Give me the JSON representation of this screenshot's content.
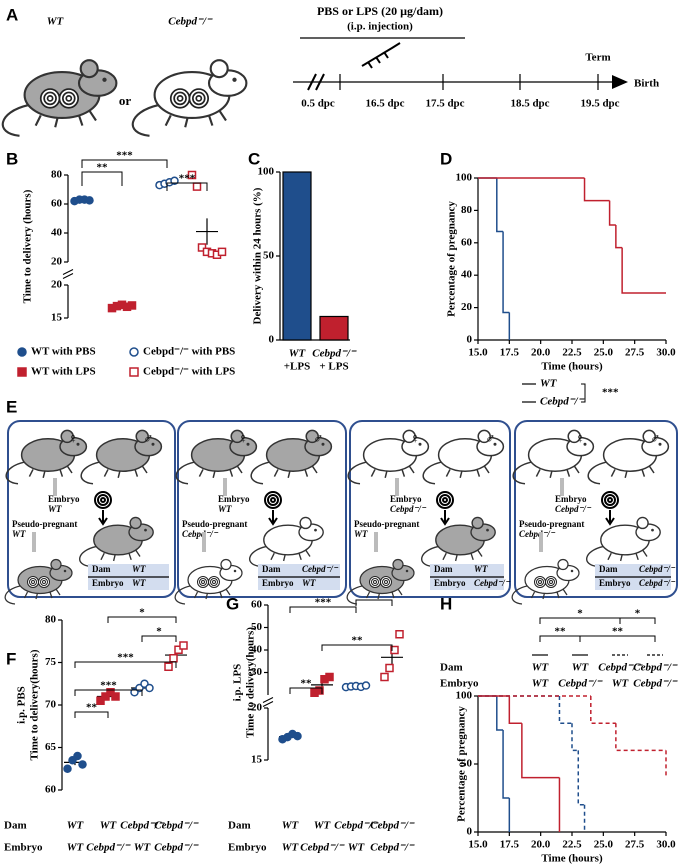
{
  "panel_a": {
    "label": "A",
    "strains": [
      "WT",
      "Cebpd⁻/⁻"
    ],
    "or": "or",
    "treatment": "PBS or LPS (20 µg/dam)",
    "route": "(i.p. injection)",
    "term": "Term",
    "birth": "Birth",
    "timepoints": [
      "0.5 dpc",
      "16.5 dpc",
      "17.5 dpc",
      "18.5 dpc",
      "19.5 dpc"
    ]
  },
  "chart_data": [
    {
      "label": "B",
      "type": "dot",
      "ylabel": "Time to delivery (hours)",
      "segments": [
        {
          "ylim": [
            15,
            20
          ],
          "yticks": [
            15,
            20
          ]
        },
        {
          "ylim": [
            20,
            80
          ],
          "yticks": [
            20,
            40,
            60,
            80
          ]
        }
      ],
      "series": [
        {
          "name": "WT with PBS",
          "color": "#1f4e8c",
          "marker": "circle",
          "filled": true,
          "values": [
            62,
            63,
            63,
            62.5
          ]
        },
        {
          "name": "WT with LPS",
          "color": "#c0202e",
          "marker": "square",
          "filled": true,
          "values": [
            16.5,
            16.8,
            17,
            16.7,
            16.9
          ]
        },
        {
          "name": "Cebpd⁻/⁻ with PBS",
          "color": "#1f4e8c",
          "marker": "circle",
          "filled": false,
          "values": [
            73,
            74,
            75,
            76
          ]
        },
        {
          "name": "Cebpd⁻/⁻ with LPS",
          "color": "#c0202e",
          "marker": "square",
          "filled": false,
          "values": [
            80,
            72,
            30,
            27,
            26,
            25,
            27
          ]
        }
      ],
      "significance": [
        "***",
        "**",
        "***"
      ]
    },
    {
      "label": "C",
      "type": "bar",
      "ylabel": "Delivery within 24 hours (%)",
      "categories": [
        "WT",
        "Cebpd⁻/⁻"
      ],
      "category_sublabels": [
        "+LPS",
        "+ LPS"
      ],
      "values": [
        100,
        14
      ],
      "colors": [
        "#1f4e8c",
        "#c0202e"
      ],
      "ylim": [
        0,
        100
      ],
      "yticks": [
        0,
        50,
        100
      ]
    },
    {
      "label": "D",
      "type": "step",
      "xlabel": "Time (hours)",
      "ylabel": "Percentage of pregnancy",
      "xlim": [
        15,
        30
      ],
      "xticks": [
        {
          "value": 15,
          "label": "15.0"
        },
        17.5,
        {
          "value": 20,
          "label": "20.0"
        },
        22.5,
        {
          "value": 25,
          "label": "25.0"
        },
        27.5,
        {
          "value": 30,
          "label": "30.0"
        }
      ],
      "ylim": [
        0,
        100
      ],
      "yticks": [
        0,
        20,
        40,
        60,
        80,
        100
      ],
      "series": [
        {
          "name": "WT",
          "color": "#1f4e8c",
          "dash": false,
          "x": [
            15,
            16.5,
            17,
            17.5
          ],
          "values": [
            100,
            67,
            17,
            0
          ]
        },
        {
          "name": "Cebpd⁻/⁻",
          "color": "#c0202e",
          "dash": false,
          "x": [
            15,
            23.5,
            25.5,
            26,
            26.5,
            30
          ],
          "values": [
            100,
            86,
            71,
            57,
            29,
            29
          ]
        }
      ],
      "significance": [
        "***"
      ]
    },
    {
      "label": "F",
      "type": "dot",
      "ylabel": [
        "i.p. PBS",
        "Time to delivery(hours)"
      ],
      "ylim": [
        60,
        80
      ],
      "yticks": [
        60,
        65,
        70,
        75,
        80
      ],
      "row_labels": [
        "Dam",
        "Embryo"
      ],
      "dam": [
        "WT",
        "WT",
        "Cebpd⁻/⁻",
        "Cebpd⁻/⁻"
      ],
      "embryo": [
        "WT",
        "Cebpd⁻/⁻",
        "WT",
        "Cebpd⁻/⁻"
      ],
      "series": [
        {
          "color": "#1f4e8c",
          "marker": "circle",
          "filled": true,
          "values": [
            62.5,
            63.5,
            64,
            63
          ]
        },
        {
          "color": "#c0202e",
          "marker": "square",
          "filled": true,
          "values": [
            70.5,
            71,
            71.5,
            71
          ]
        },
        {
          "color": "#1f4e8c",
          "marker": "circle",
          "filled": false,
          "values": [
            71.5,
            72,
            72.5,
            72
          ]
        },
        {
          "color": "#c0202e",
          "marker": "square",
          "filled": false,
          "values": [
            74.5,
            75.5,
            76.5,
            77
          ]
        }
      ],
      "significance": [
        "*",
        "*",
        "***",
        "***",
        "**"
      ]
    },
    {
      "label": "G",
      "type": "dot",
      "ylabel": [
        "i.p. LPS",
        "Time to delivery(hours)"
      ],
      "segments": [
        {
          "ylim": [
            15,
            20
          ],
          "yticks": [
            15,
            20
          ]
        },
        {
          "ylim": [
            20,
            60
          ],
          "yticks": [
            30,
            40,
            50,
            60
          ]
        }
      ],
      "row_labels": [
        "Dam",
        "Embryo"
      ],
      "dam": [
        "WT",
        "WT",
        "Cebpd⁻/⁻",
        "Cebpd⁻/⁻"
      ],
      "embryo": [
        "WT",
        "Cebpd⁻/⁻",
        "WT",
        "Cebpd⁻/⁻"
      ],
      "series": [
        {
          "color": "#1f4e8c",
          "marker": "circle",
          "filled": true,
          "values": [
            17,
            17.2,
            17.5,
            17.3
          ]
        },
        {
          "color": "#c0202e",
          "marker": "square",
          "filled": true,
          "values": [
            21,
            22,
            27,
            28
          ]
        },
        {
          "color": "#1f4e8c",
          "marker": "circle",
          "filled": false,
          "values": [
            23.5,
            23.8,
            24,
            23.6,
            24.2
          ]
        },
        {
          "color": "#c0202e",
          "marker": "square",
          "filled": false,
          "values": [
            28,
            32,
            40,
            47
          ]
        }
      ],
      "significance": [
        "***",
        "**",
        "**",
        "**"
      ]
    },
    {
      "label": "H",
      "type": "step",
      "xlabel": "Time (hours)",
      "ylabel": "Percentage of pregnancy",
      "xlim": [
        15,
        30
      ],
      "xticks": [
        {
          "value": 15,
          "label": "15.0"
        },
        17.5,
        {
          "value": 20,
          "label": "20.0"
        },
        22.5,
        {
          "value": 25,
          "label": "25.0"
        },
        27.5,
        {
          "value": 30,
          "label": "30.0"
        }
      ],
      "ylim": [
        0,
        100
      ],
      "yticks": [
        0,
        50,
        100
      ],
      "row_labels": [
        "Dam",
        "Embryo"
      ],
      "series": [
        {
          "dam": "WT",
          "embryo": "WT",
          "color": "#1f4e8c",
          "dash": false,
          "x": [
            15,
            16.5,
            17,
            17.5
          ],
          "values": [
            100,
            75,
            25,
            0
          ]
        },
        {
          "dam": "WT",
          "embryo": "Cebpd⁻/⁻",
          "color": "#c0202e",
          "dash": false,
          "x": [
            15,
            17.5,
            18.5,
            21.5
          ],
          "values": [
            100,
            80,
            40,
            0
          ]
        },
        {
          "dam": "Cebpd⁻/⁻",
          "embryo": "WT",
          "color": "#1f4e8c",
          "dash": true,
          "x": [
            15,
            21.5,
            22.5,
            23,
            23.5
          ],
          "values": [
            100,
            80,
            60,
            20,
            0
          ]
        },
        {
          "dam": "Cebpd⁻/⁻",
          "embryo": "Cebpd⁻/⁻",
          "color": "#c0202e",
          "dash": true,
          "x": [
            15,
            24,
            26,
            30
          ],
          "values": [
            100,
            80,
            60,
            40
          ]
        }
      ],
      "significance": [
        "*",
        "*",
        "**",
        "**"
      ]
    }
  ],
  "panel_e": {
    "label": "E",
    "symbols": [
      "♀",
      "♂"
    ],
    "embryo_label": "Embryo",
    "pseudo_label": "Pseudo-pregnant",
    "table_labels": [
      "Dam",
      "Embryo"
    ],
    "panels": [
      {
        "embryo": "WT",
        "pseudo": "WT",
        "dam": "WT",
        "table_embryo": "WT",
        "parent_color": "#a6a6a6",
        "pseudo_color": "#a6a6a6"
      },
      {
        "embryo": "WT",
        "pseudo": "Cebpd⁻/⁻",
        "dam": "Cebpd⁻/⁻",
        "table_embryo": "WT",
        "parent_color": "#a6a6a6",
        "pseudo_color": "#ffffff"
      },
      {
        "embryo": "Cebpd⁻/⁻",
        "pseudo": "WT",
        "dam": "WT",
        "table_embryo": "Cebpd⁻/⁻",
        "parent_color": "#ffffff",
        "pseudo_color": "#a6a6a6"
      },
      {
        "embryo": "Cebpd⁻/⁻",
        "pseudo": "Cebpd⁻/⁻",
        "dam": "Cebpd⁻/⁻",
        "table_embryo": "Cebpd⁻/⁻",
        "parent_color": "#ffffff",
        "pseudo_color": "#ffffff"
      }
    ]
  }
}
